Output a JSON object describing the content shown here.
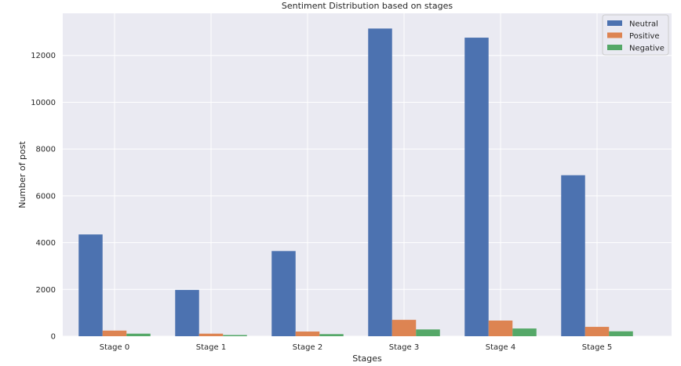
{
  "chart_data": {
    "type": "bar",
    "title": "Sentiment Distribution based on stages",
    "xlabel": "Stages",
    "ylabel": "Number of post",
    "categories": [
      "Stage 0",
      "Stage 1",
      "Stage 2",
      "Stage 3",
      "Stage 4",
      "Stage 5"
    ],
    "series": [
      {
        "name": "Neutral",
        "color": "#4c72b0",
        "values": [
          4350,
          1980,
          3640,
          13150,
          12760,
          6880
        ]
      },
      {
        "name": "Positive",
        "color": "#dd8452",
        "values": [
          240,
          110,
          200,
          700,
          670,
          400
        ]
      },
      {
        "name": "Negative",
        "color": "#55a868",
        "values": [
          110,
          50,
          90,
          290,
          330,
          210
        ]
      }
    ],
    "ylim": [
      0,
      13800
    ],
    "yticks": [
      0,
      2000,
      4000,
      6000,
      8000,
      10000,
      12000
    ],
    "grid": true,
    "legend": "top-right"
  }
}
